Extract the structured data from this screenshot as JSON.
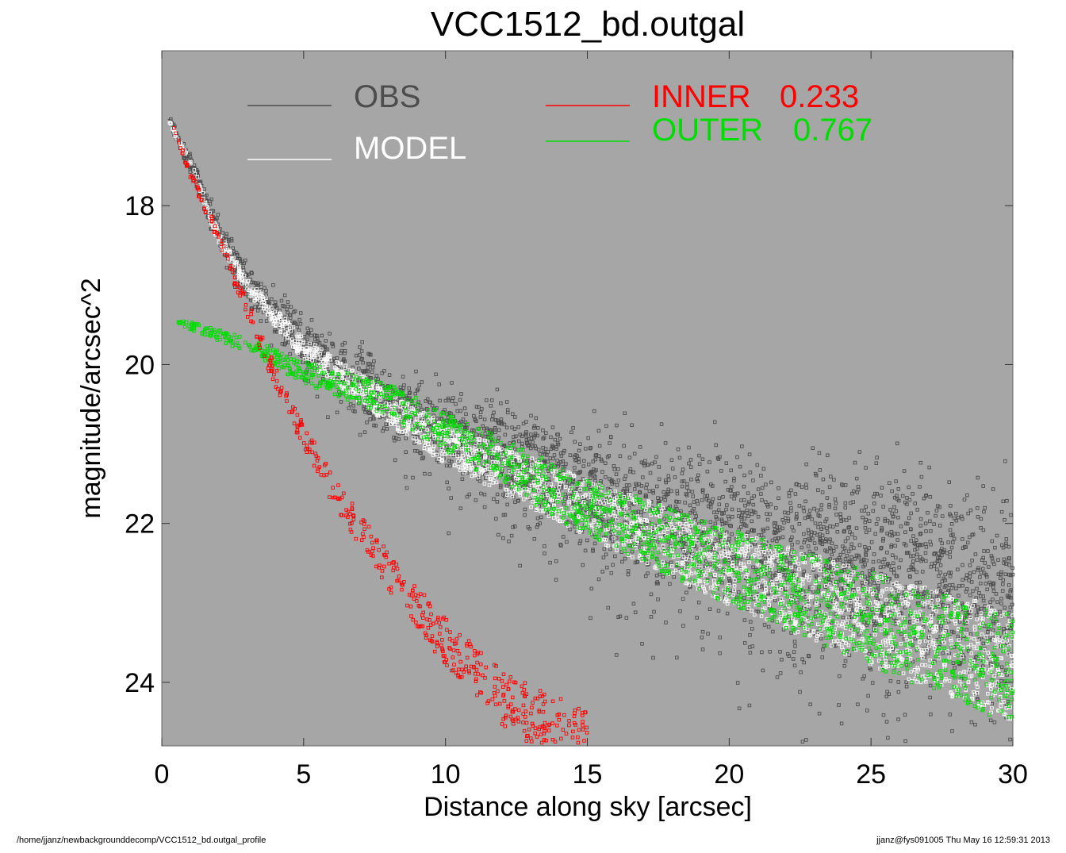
{
  "chart_data": {
    "type": "scatter",
    "title": "VCC1512_bd.outgal",
    "xlabel": "Distance along sky [arcsec]",
    "ylabel": "magnitude/arcsec^2",
    "xlim": [
      0,
      30
    ],
    "ylim": [
      24.8,
      16.05
    ],
    "y_inverted": true,
    "grid": false,
    "background": "#a6a6a6",
    "legend_placement": "top",
    "x_ticks": [
      "0",
      "5",
      "10",
      "15",
      "20",
      "25",
      "30"
    ],
    "y_ticks": [
      "18",
      "20",
      "22",
      "24"
    ],
    "legend": [
      {
        "label": "OBS",
        "value": "",
        "color": "#4d4d4d"
      },
      {
        "label": "MODEL",
        "value": "",
        "color": "#ffffff"
      },
      {
        "label": "INNER",
        "value": "0.233",
        "color": "#ff0000"
      },
      {
        "label": "OUTER",
        "value": "0.767",
        "color": "#00dd00"
      }
    ],
    "series": [
      {
        "name": "OBS",
        "color": "#4d4d4d",
        "marker": "square",
        "trend": {
          "x": [
            0.25,
            1,
            2,
            3,
            5,
            8,
            10,
            15,
            20,
            25,
            30
          ],
          "y": [
            16.95,
            17.45,
            18.35,
            18.95,
            19.75,
            20.45,
            20.85,
            21.6,
            22.15,
            22.55,
            22.85
          ]
        }
      },
      {
        "name": "MODEL",
        "color": "#ffffff",
        "marker": "square",
        "trend": {
          "x": [
            0.25,
            1,
            2,
            3,
            5,
            8,
            10,
            15,
            20,
            25,
            30
          ],
          "y": [
            16.95,
            17.45,
            18.4,
            19.0,
            19.8,
            20.55,
            21.0,
            21.8,
            22.55,
            23.2,
            23.8
          ]
        }
      },
      {
        "name": "INNER",
        "color": "#ff0000",
        "marker": "square",
        "trend": {
          "x": [
            0.4,
            1,
            2,
            3,
            4,
            5,
            6,
            8,
            10,
            12,
            14,
            15
          ],
          "y": [
            16.97,
            17.6,
            18.4,
            19.3,
            20.15,
            20.9,
            21.55,
            22.6,
            23.5,
            24.2,
            24.6,
            24.8
          ]
        }
      },
      {
        "name": "OUTER",
        "color": "#00dd00",
        "marker": "square",
        "trend": {
          "x": [
            0.5,
            3,
            5,
            8,
            10,
            15,
            20,
            25,
            30
          ],
          "y": [
            19.45,
            19.75,
            20.1,
            20.45,
            20.85,
            21.8,
            22.55,
            23.2,
            23.85
          ]
        }
      }
    ]
  },
  "footer": {
    "path": "/home/jjanz/newbackgrounddecomp/VCC1512_bd.outgal_profile",
    "stamp": "jjanz@fys091005  Thu May 16 12:59:31 2013"
  }
}
